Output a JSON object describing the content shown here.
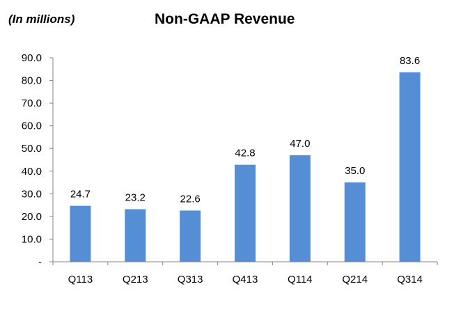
{
  "chart_data": {
    "type": "bar",
    "title": "Non-GAAP Revenue",
    "units_note": "(In millions)",
    "categories": [
      "Q113",
      "Q213",
      "Q313",
      "Q413",
      "Q114",
      "Q214",
      "Q314"
    ],
    "values": [
      24.7,
      23.2,
      22.6,
      42.8,
      47.0,
      35.0,
      83.6
    ],
    "data_labels": [
      "24.7",
      "23.2",
      "22.6",
      "42.8",
      "47.0",
      "35.0",
      "83.6"
    ],
    "y_ticks": [
      0,
      10,
      20,
      30,
      40,
      50,
      60,
      70,
      80,
      90
    ],
    "y_tick_labels": [
      "-",
      "10.0",
      "20.0",
      "30.0",
      "40.0",
      "50.0",
      "60.0",
      "70.0",
      "80.0",
      "90.0"
    ],
    "ylim": [
      0,
      90
    ],
    "xlabel": "",
    "ylabel": "",
    "grid": false,
    "bar_color": "#558ED5"
  }
}
